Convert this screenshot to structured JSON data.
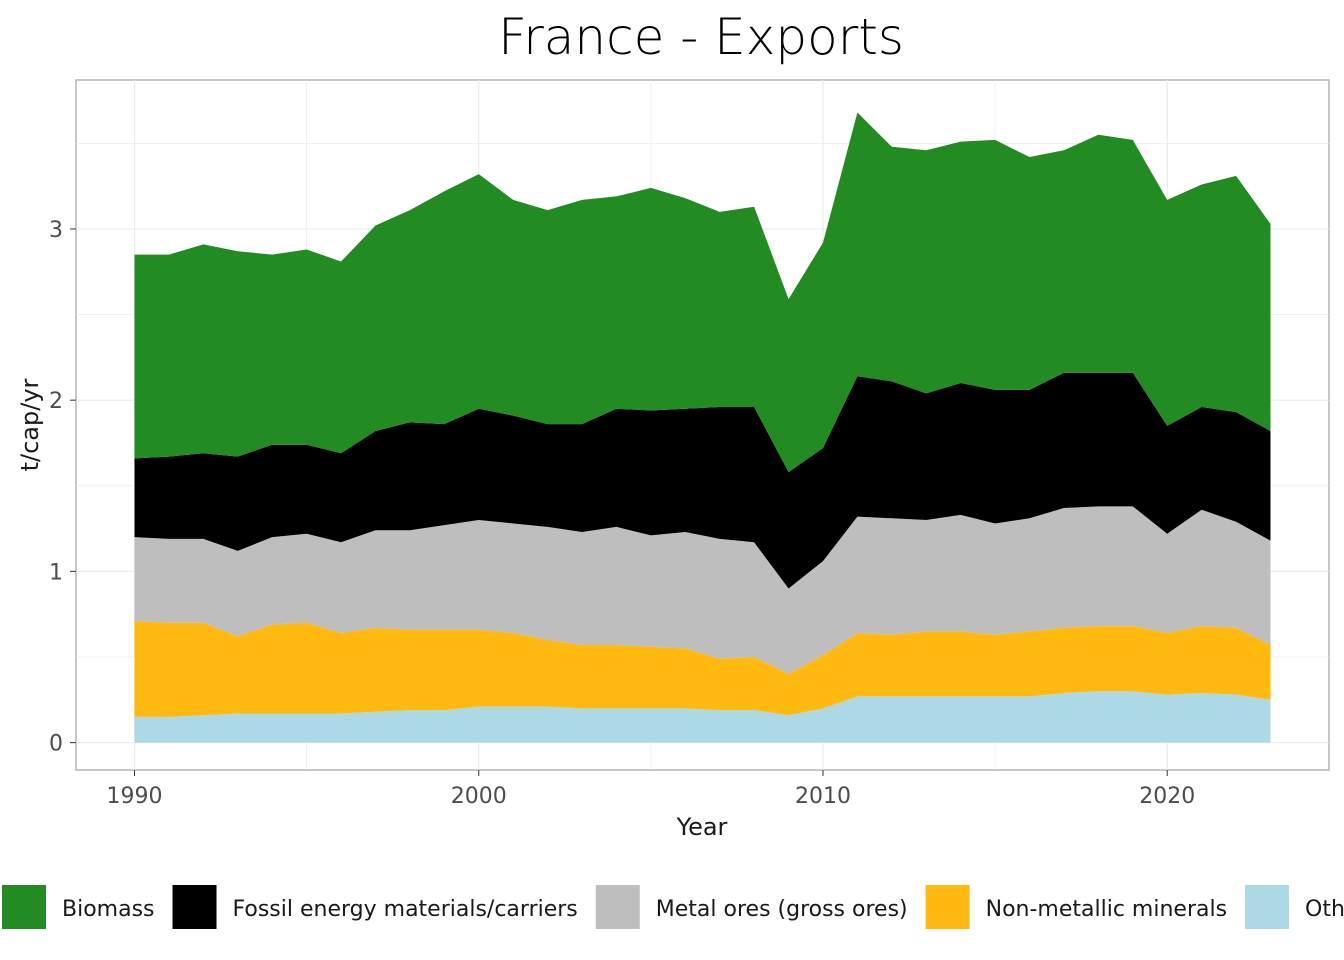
{
  "chart_data": {
    "type": "area",
    "stacked": true,
    "title": "France  -  Exports",
    "xlabel": "Year",
    "ylabel": "t/cap/yr",
    "xlim": [
      1988.3,
      2024.7
    ],
    "ylim": [
      -0.16,
      3.87
    ],
    "x_ticks": [
      1990,
      2000,
      2010,
      2020
    ],
    "y_ticks": [
      0,
      1,
      2,
      3
    ],
    "grid": true,
    "legend_position": "bottom",
    "x": [
      1990,
      1991,
      1992,
      1993,
      1994,
      1995,
      1996,
      1997,
      1998,
      1999,
      2000,
      2001,
      2002,
      2003,
      2004,
      2005,
      2006,
      2007,
      2008,
      2009,
      2010,
      2011,
      2012,
      2013,
      2014,
      2015,
      2016,
      2017,
      2018,
      2019,
      2020,
      2021,
      2022,
      2023
    ],
    "series": [
      {
        "name": "Other products",
        "color": "#add8e6",
        "values": [
          0.15,
          0.15,
          0.16,
          0.17,
          0.17,
          0.17,
          0.17,
          0.18,
          0.19,
          0.19,
          0.21,
          0.21,
          0.21,
          0.2,
          0.2,
          0.2,
          0.2,
          0.19,
          0.19,
          0.16,
          0.2,
          0.27,
          0.27,
          0.27,
          0.27,
          0.27,
          0.27,
          0.29,
          0.3,
          0.3,
          0.28,
          0.29,
          0.28,
          0.25
        ]
      },
      {
        "name": "Non-metallic minerals",
        "color": "#ffb90f",
        "values": [
          0.56,
          0.55,
          0.54,
          0.45,
          0.52,
          0.53,
          0.47,
          0.49,
          0.47,
          0.47,
          0.45,
          0.43,
          0.39,
          0.37,
          0.37,
          0.36,
          0.35,
          0.3,
          0.31,
          0.24,
          0.31,
          0.37,
          0.36,
          0.38,
          0.38,
          0.36,
          0.38,
          0.38,
          0.38,
          0.38,
          0.36,
          0.39,
          0.39,
          0.32
        ]
      },
      {
        "name": "Metal ores (gross ores)",
        "color": "#bebebe",
        "values": [
          0.49,
          0.49,
          0.49,
          0.5,
          0.51,
          0.52,
          0.53,
          0.57,
          0.58,
          0.61,
          0.64,
          0.64,
          0.66,
          0.66,
          0.69,
          0.65,
          0.68,
          0.7,
          0.67,
          0.5,
          0.55,
          0.68,
          0.68,
          0.65,
          0.68,
          0.65,
          0.66,
          0.7,
          0.7,
          0.7,
          0.58,
          0.68,
          0.62,
          0.61
        ]
      },
      {
        "name": "Fossil energy materials/carriers",
        "color": "#000000",
        "values": [
          0.46,
          0.48,
          0.5,
          0.55,
          0.54,
          0.52,
          0.52,
          0.58,
          0.63,
          0.59,
          0.65,
          0.63,
          0.6,
          0.63,
          0.69,
          0.73,
          0.72,
          0.77,
          0.79,
          0.68,
          0.66,
          0.82,
          0.8,
          0.74,
          0.77,
          0.78,
          0.75,
          0.79,
          0.78,
          0.78,
          0.63,
          0.6,
          0.64,
          0.64
        ]
      },
      {
        "name": "Biomass",
        "color": "#228b22",
        "values": [
          1.19,
          1.18,
          1.22,
          1.2,
          1.11,
          1.14,
          1.12,
          1.2,
          1.24,
          1.36,
          1.37,
          1.26,
          1.25,
          1.31,
          1.24,
          1.3,
          1.23,
          1.14,
          1.17,
          1.01,
          1.2,
          1.54,
          1.37,
          1.42,
          1.41,
          1.46,
          1.36,
          1.3,
          1.39,
          1.36,
          1.32,
          1.3,
          1.38,
          1.21
        ]
      }
    ]
  }
}
